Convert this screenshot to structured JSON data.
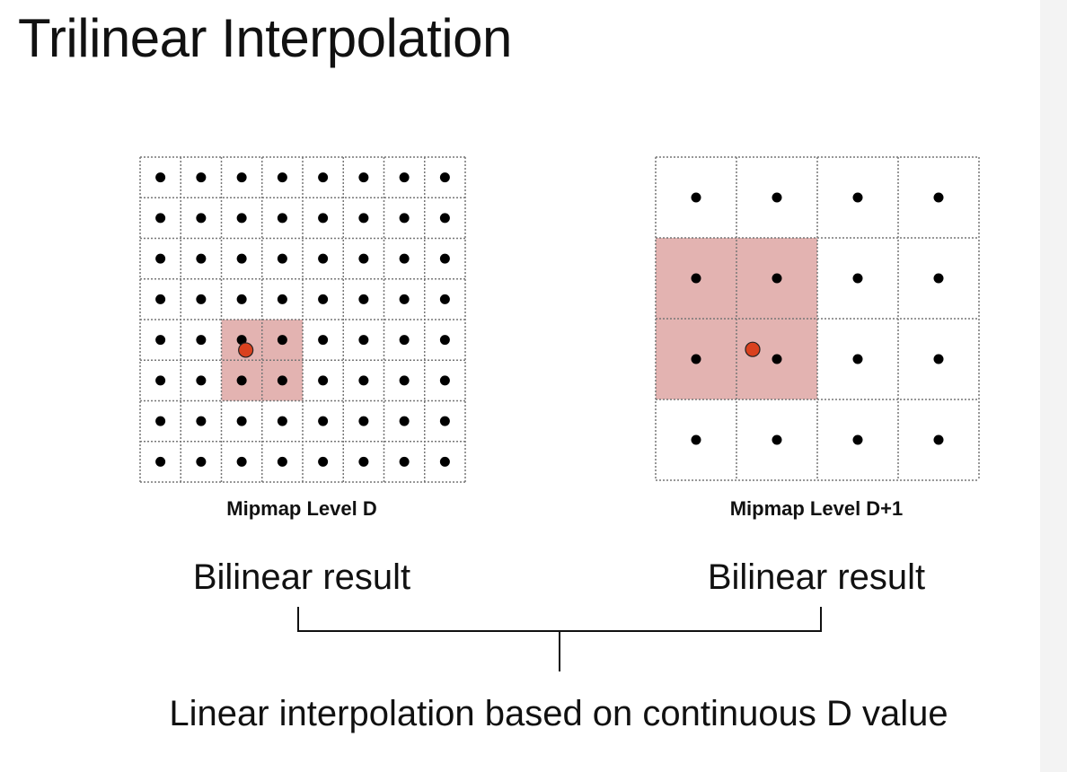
{
  "title": "Trilinear Interpolation",
  "level_d": {
    "label": "Mipmap Level D",
    "grid_size": 8,
    "highlight": {
      "col": 2,
      "row": 4,
      "cols": 2,
      "rows": 2
    },
    "sample_point": {
      "col": 2.6,
      "row": 4.75
    }
  },
  "level_d1": {
    "label": "Mipmap Level D+1",
    "grid_size": 4,
    "highlight": {
      "col": 0,
      "row": 1,
      "cols": 2,
      "rows": 2
    },
    "sample_point": {
      "col": 1.2,
      "row": 2.38
    }
  },
  "left_result": "Bilinear result",
  "right_result": "Bilinear result",
  "conclusion": "Linear interpolation based on continuous D value",
  "colors": {
    "highlight_fill": "#e3b3b1",
    "sample_point": "#d9411e",
    "grid_line": "#777777",
    "dot": "#000000"
  }
}
